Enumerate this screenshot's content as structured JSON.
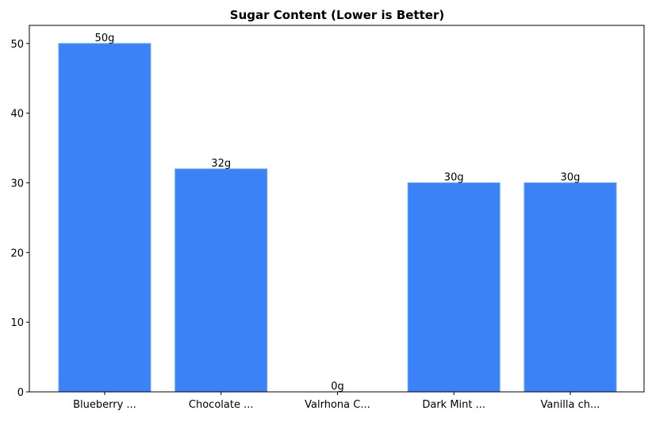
{
  "chart_data": {
    "type": "bar",
    "title": "Sugar Content (Lower is Better)",
    "xlabel": "",
    "ylabel": "",
    "categories": [
      "Blueberry ...",
      "Chocolate ...",
      "Valrhona C...",
      "Dark Mint ...",
      "Vanilla ch..."
    ],
    "values": [
      50,
      32,
      0,
      30,
      30
    ],
    "data_labels": [
      "50g",
      "32g",
      "0g",
      "30g",
      "30g"
    ],
    "ylim": [
      0,
      52.6
    ],
    "yticks": [
      0,
      10,
      20,
      30,
      40,
      50
    ],
    "grid": false,
    "bar_color": "#3b82f6",
    "bar_edge_color": "#60a5fa"
  }
}
